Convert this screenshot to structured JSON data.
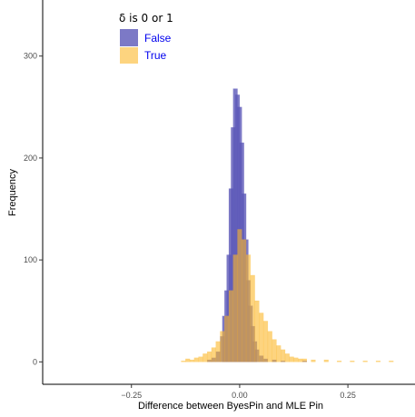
{
  "chart_data": {
    "type": "bar",
    "title": "",
    "xlabel": "Difference between ByesPin and MLE Pin",
    "ylabel": "Frequency",
    "xlim": [
      -0.455,
      0.405
    ],
    "ylim": [
      -22,
      355
    ],
    "xticks": [
      -0.25,
      0.0,
      0.25
    ],
    "xtick_labels": [
      "−0.25",
      "0.00",
      "0.25"
    ],
    "yticks": [
      0,
      100,
      200,
      300
    ],
    "ytick_labels": [
      "0",
      "100",
      "200",
      "300"
    ],
    "grid": false,
    "legend": {
      "title": "δ is 0 or 1",
      "placement": "top-left",
      "entries": [
        {
          "label": "False",
          "color": "#5b57b8"
        },
        {
          "label": "True",
          "color": "#fbb829"
        }
      ]
    },
    "bin_width": 0.01,
    "series": [
      {
        "name": "False",
        "color": "#5b57b8",
        "opacity": 0.8,
        "bins": [
          {
            "x": -0.07,
            "count": 2
          },
          {
            "x": -0.06,
            "count": 4
          },
          {
            "x": -0.05,
            "count": 10
          },
          {
            "x": -0.04,
            "count": 25
          },
          {
            "x": -0.035,
            "count": 45
          },
          {
            "x": -0.03,
            "count": 70
          },
          {
            "x": -0.025,
            "count": 105
          },
          {
            "x": -0.02,
            "count": 170
          },
          {
            "x": -0.015,
            "count": 230
          },
          {
            "x": -0.01,
            "count": 268
          },
          {
            "x": -0.005,
            "count": 262
          },
          {
            "x": 0.0,
            "count": 250
          },
          {
            "x": 0.005,
            "count": 215
          },
          {
            "x": 0.01,
            "count": 165
          },
          {
            "x": 0.015,
            "count": 120
          },
          {
            "x": 0.02,
            "count": 80
          },
          {
            "x": 0.025,
            "count": 55
          },
          {
            "x": 0.03,
            "count": 35
          },
          {
            "x": 0.035,
            "count": 20
          },
          {
            "x": 0.04,
            "count": 12
          },
          {
            "x": 0.05,
            "count": 6
          },
          {
            "x": 0.06,
            "count": 3
          },
          {
            "x": 0.08,
            "count": 2
          },
          {
            "x": 0.1,
            "count": 1
          },
          {
            "x": 0.15,
            "count": 1
          }
        ]
      },
      {
        "name": "True",
        "color": "#fbb829",
        "opacity": 0.6,
        "bins": [
          {
            "x": -0.13,
            "count": 1
          },
          {
            "x": -0.12,
            "count": 3
          },
          {
            "x": -0.11,
            "count": 2
          },
          {
            "x": -0.1,
            "count": 4
          },
          {
            "x": -0.09,
            "count": 5
          },
          {
            "x": -0.08,
            "count": 8
          },
          {
            "x": -0.07,
            "count": 10
          },
          {
            "x": -0.06,
            "count": 14
          },
          {
            "x": -0.05,
            "count": 20
          },
          {
            "x": -0.04,
            "count": 30
          },
          {
            "x": -0.03,
            "count": 45
          },
          {
            "x": -0.02,
            "count": 70
          },
          {
            "x": -0.01,
            "count": 105
          },
          {
            "x": 0.0,
            "count": 130
          },
          {
            "x": 0.01,
            "count": 120
          },
          {
            "x": 0.02,
            "count": 105
          },
          {
            "x": 0.03,
            "count": 85
          },
          {
            "x": 0.04,
            "count": 60
          },
          {
            "x": 0.05,
            "count": 48
          },
          {
            "x": 0.06,
            "count": 40
          },
          {
            "x": 0.07,
            "count": 30
          },
          {
            "x": 0.08,
            "count": 22
          },
          {
            "x": 0.09,
            "count": 16
          },
          {
            "x": 0.1,
            "count": 12
          },
          {
            "x": 0.11,
            "count": 8
          },
          {
            "x": 0.12,
            "count": 5
          },
          {
            "x": 0.13,
            "count": 4
          },
          {
            "x": 0.14,
            "count": 3
          },
          {
            "x": 0.15,
            "count": 3
          },
          {
            "x": 0.17,
            "count": 2
          },
          {
            "x": 0.2,
            "count": 2
          },
          {
            "x": 0.23,
            "count": 1
          },
          {
            "x": 0.26,
            "count": 1
          },
          {
            "x": 0.29,
            "count": 1
          },
          {
            "x": 0.32,
            "count": 1
          },
          {
            "x": 0.35,
            "count": 1
          }
        ]
      }
    ]
  }
}
